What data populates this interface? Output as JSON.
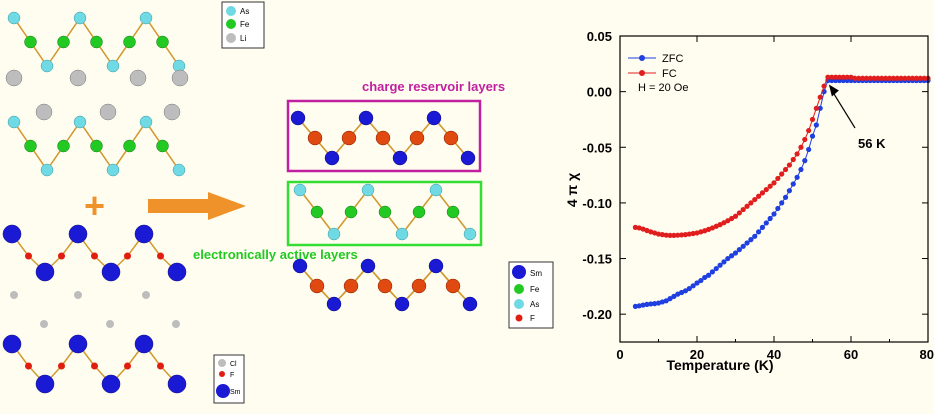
{
  "legends": {
    "top": [
      "As",
      "Fe",
      "Li"
    ],
    "bottom": [
      "Cl",
      "F",
      "Sm"
    ],
    "middle": [
      "Sm",
      "Fe",
      "As",
      "F"
    ]
  },
  "labels": {
    "charge": "charge reservoir layers",
    "active": "electronically active layers",
    "plus": "+"
  },
  "colors": {
    "As": "#6fd9e4",
    "Fe": "#22c922",
    "Li": "#bdbdbd",
    "Sm": "#1a1ad4",
    "F": "#e01e10",
    "Cl": "#bdbdbd",
    "FeF_red": "#e04a10",
    "bond": "#d09a30",
    "arrow": "#f0922a",
    "charge_box": "#c020a0",
    "active_box": "#33dd33",
    "ZFC": "#1f3fe0",
    "FC": "#e01e1e"
  },
  "chart_data": {
    "type": "scatter",
    "xlabel": "Temperature (K)",
    "ylabel": "4 π χ",
    "xlim": [
      0,
      80
    ],
    "ylim": [
      -0.225,
      0.05
    ],
    "xticks": [
      "0",
      "20",
      "40",
      "60",
      "80"
    ],
    "yticks": [
      "0.05",
      "0.00",
      "-0.05",
      "-0.10",
      "-0.15",
      "-0.20"
    ],
    "legend_position": "top-left",
    "note": "H = 20 Oe",
    "annotation": "56 K",
    "annotation_point": [
      54,
      0.01
    ],
    "series": [
      {
        "name": "ZFC",
        "color": "#1f3fe0",
        "x": [
          4,
          5,
          6,
          7,
          8,
          9,
          10,
          11,
          12,
          13,
          14,
          15,
          16,
          17,
          18,
          19,
          20,
          21,
          22,
          23,
          24,
          25,
          26,
          27,
          28,
          29,
          30,
          31,
          32,
          33,
          34,
          35,
          36,
          37,
          38,
          39,
          40,
          41,
          42,
          43,
          44,
          45,
          46,
          47,
          48,
          49,
          50,
          51,
          52,
          53,
          54,
          55,
          56,
          57,
          58,
          59,
          60,
          61,
          62,
          63,
          64,
          65,
          66,
          67,
          68,
          69,
          70,
          71,
          72,
          73,
          74,
          75,
          76,
          77,
          78,
          79,
          80
        ],
        "y": [
          -0.193,
          -0.1925,
          -0.1918,
          -0.1912,
          -0.1908,
          -0.1905,
          -0.19,
          -0.189,
          -0.188,
          -0.186,
          -0.184,
          -0.182,
          -0.1805,
          -0.179,
          -0.177,
          -0.1745,
          -0.172,
          -0.1698,
          -0.167,
          -0.165,
          -0.162,
          -0.159,
          -0.156,
          -0.153,
          -0.15,
          -0.1475,
          -0.145,
          -0.142,
          -0.139,
          -0.136,
          -0.133,
          -0.13,
          -0.126,
          -0.122,
          -0.118,
          -0.114,
          -0.11,
          -0.105,
          -0.1,
          -0.095,
          -0.089,
          -0.083,
          -0.077,
          -0.07,
          -0.062,
          -0.052,
          -0.04,
          -0.03,
          -0.015,
          0.0,
          0.01,
          0.01,
          0.01,
          0.01,
          0.01,
          0.01,
          0.01,
          0.01,
          0.01,
          0.01,
          0.01,
          0.01,
          0.01,
          0.01,
          0.01,
          0.01,
          0.01,
          0.01,
          0.01,
          0.01,
          0.01,
          0.01,
          0.01,
          0.01,
          0.01,
          0.01,
          0.01
        ]
      },
      {
        "name": "FC",
        "color": "#e01e1e",
        "x": [
          4,
          5,
          6,
          7,
          8,
          9,
          10,
          11,
          12,
          13,
          14,
          15,
          16,
          17,
          18,
          19,
          20,
          21,
          22,
          23,
          24,
          25,
          26,
          27,
          28,
          29,
          30,
          31,
          32,
          33,
          34,
          35,
          36,
          37,
          38,
          39,
          40,
          41,
          42,
          43,
          44,
          45,
          46,
          47,
          48,
          49,
          50,
          51,
          52,
          53,
          54,
          55,
          56,
          57,
          58,
          59,
          60,
          61,
          62,
          63,
          64,
          65,
          66,
          67,
          68,
          69,
          70,
          71,
          72,
          73,
          74,
          75,
          76,
          77,
          78,
          79,
          80
        ],
        "y": [
          -0.122,
          -0.1225,
          -0.1235,
          -0.1248,
          -0.126,
          -0.127,
          -0.128,
          -0.1285,
          -0.129,
          -0.1292,
          -0.1292,
          -0.129,
          -0.1288,
          -0.1285,
          -0.128,
          -0.1275,
          -0.127,
          -0.126,
          -0.125,
          -0.1238,
          -0.1225,
          -0.121,
          -0.1195,
          -0.1178,
          -0.116,
          -0.114,
          -0.112,
          -0.109,
          -0.106,
          -0.103,
          -0.1,
          -0.097,
          -0.094,
          -0.091,
          -0.088,
          -0.085,
          -0.082,
          -0.078,
          -0.074,
          -0.07,
          -0.066,
          -0.061,
          -0.056,
          -0.05,
          -0.043,
          -0.035,
          -0.025,
          -0.015,
          -0.005,
          0.005,
          0.013,
          0.013,
          0.013,
          0.013,
          0.013,
          0.013,
          0.013,
          0.012,
          0.012,
          0.012,
          0.012,
          0.012,
          0.012,
          0.012,
          0.012,
          0.012,
          0.012,
          0.012,
          0.012,
          0.012,
          0.012,
          0.012,
          0.012,
          0.012,
          0.012,
          0.012,
          0.012
        ]
      }
    ]
  }
}
